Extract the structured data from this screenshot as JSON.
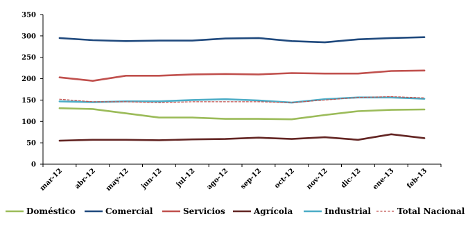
{
  "chart_data": {
    "type": "line",
    "title": "",
    "xlabel": "",
    "ylabel": "",
    "ylim": [
      0,
      350
    ],
    "yticks": [
      0,
      50,
      100,
      150,
      200,
      250,
      300,
      350
    ],
    "grid": false,
    "legend_position": "bottom",
    "categories": [
      "mar-12",
      "abr-12",
      "may-12",
      "jun-12",
      "jul-12",
      "ago-12",
      "sep-12",
      "oct-12",
      "nov-12",
      "dic-12",
      "ene-13",
      "feb-13"
    ],
    "series": [
      {
        "name": "Doméstico",
        "color": "#9bbb59",
        "dash": false,
        "values": [
          131,
          129,
          119,
          109,
          109,
          106,
          106,
          105,
          115,
          124,
          127,
          128
        ]
      },
      {
        "name": "Comercial",
        "color": "#1f497d",
        "dash": false,
        "values": [
          295,
          290,
          288,
          289,
          289,
          294,
          295,
          288,
          285,
          292,
          295,
          297
        ]
      },
      {
        "name": "Servicios",
        "color": "#c0504d",
        "dash": false,
        "values": [
          203,
          195,
          207,
          207,
          210,
          211,
          210,
          213,
          212,
          212,
          218,
          219
        ]
      },
      {
        "name": "Agrícola",
        "color": "#632523",
        "dash": false,
        "values": [
          55,
          57,
          57,
          56,
          58,
          59,
          62,
          59,
          63,
          57,
          70,
          61
        ]
      },
      {
        "name": "Industrial",
        "color": "#4bacc6",
        "dash": false,
        "values": [
          147,
          145,
          147,
          147,
          150,
          152,
          149,
          144,
          152,
          156,
          156,
          153
        ]
      },
      {
        "name": "Total Nacional",
        "color": "#c0504d",
        "dash": true,
        "values": [
          152,
          146,
          146,
          144,
          146,
          146,
          146,
          144,
          150,
          156,
          158,
          155
        ]
      }
    ]
  }
}
